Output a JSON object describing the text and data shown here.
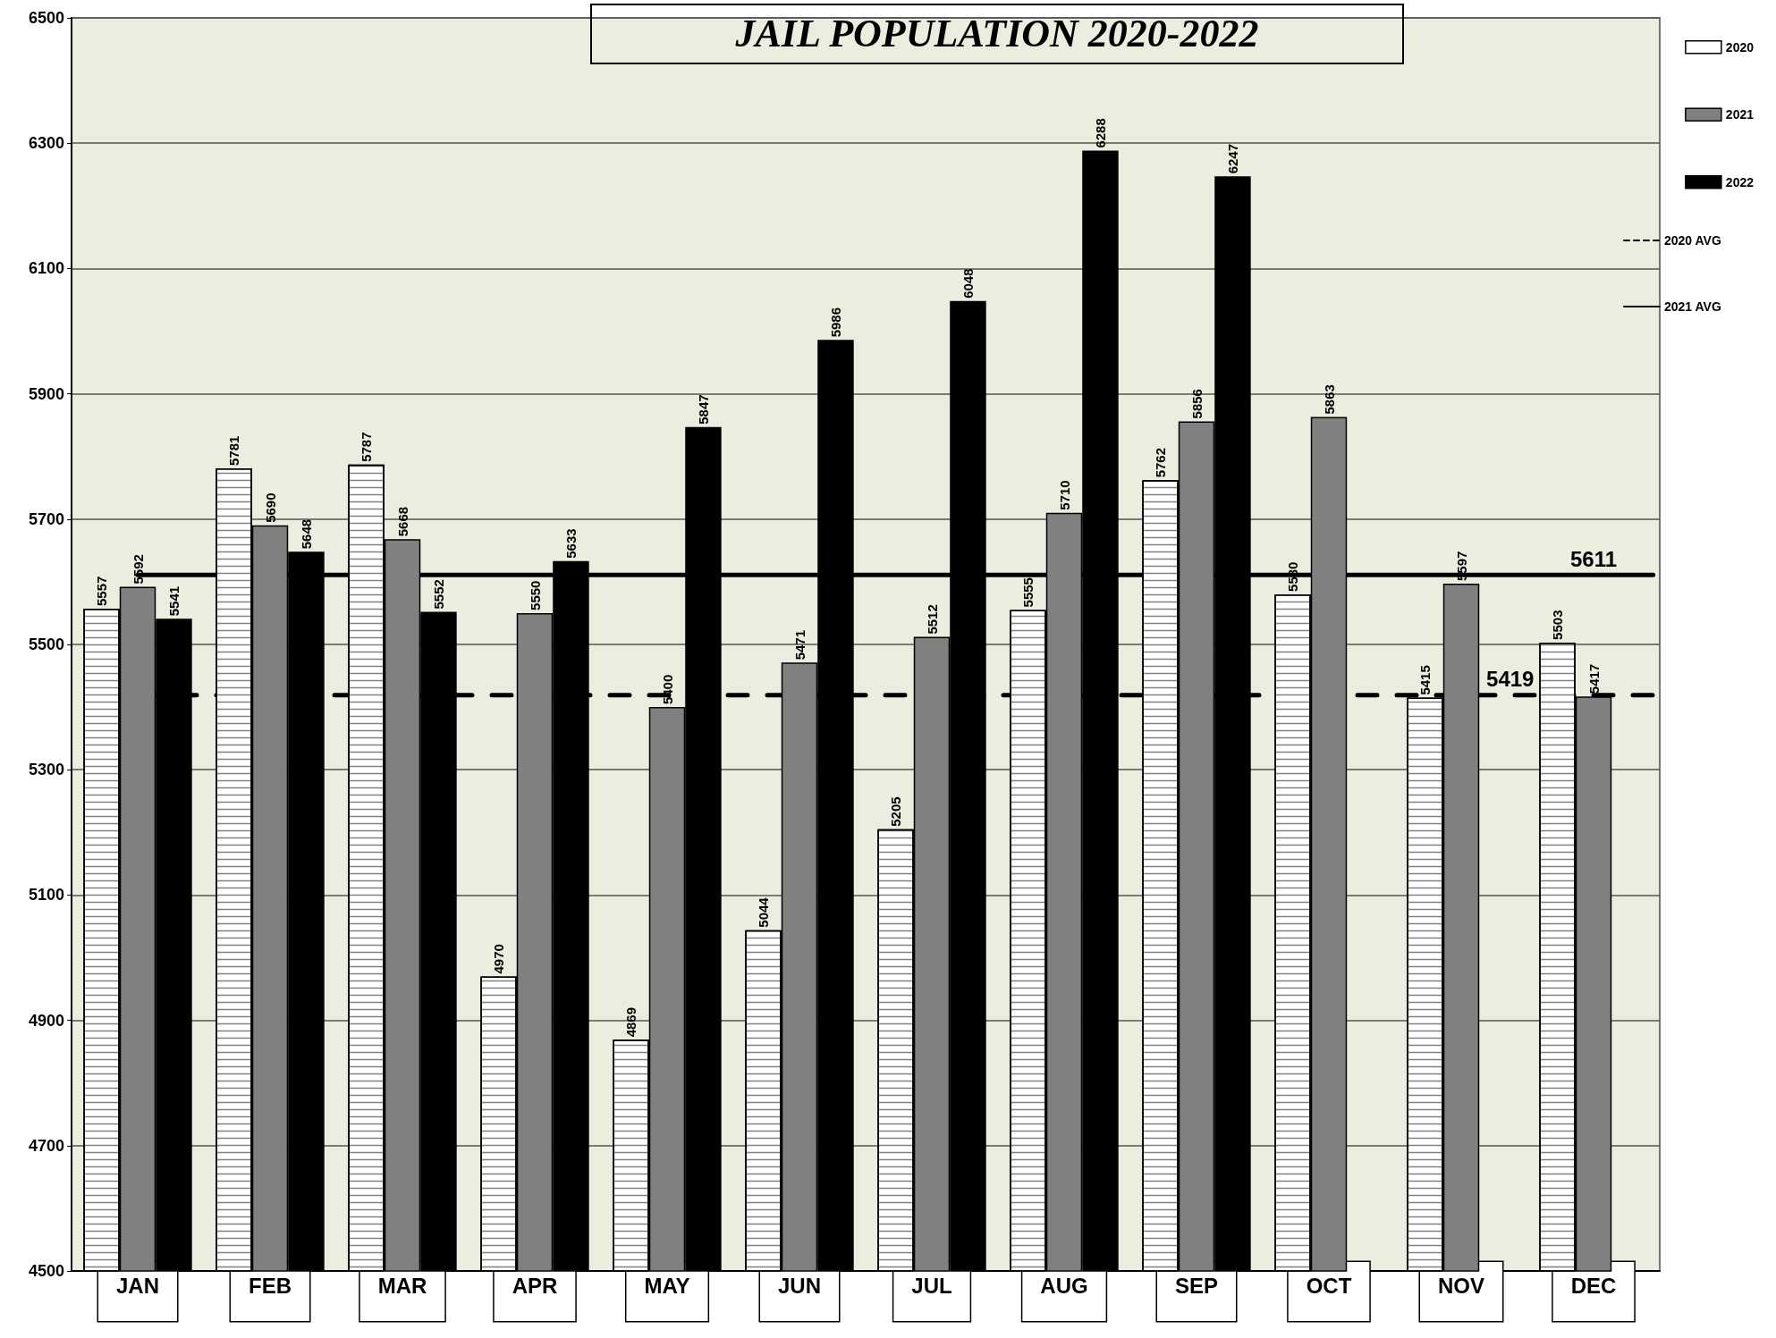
{
  "chart_data": {
    "type": "bar",
    "title": "JAIL POPULATION 2020-2022",
    "categories": [
      "JAN",
      "FEB",
      "MAR",
      "APR",
      "MAY",
      "JUN",
      "JUL",
      "AUG",
      "SEP",
      "OCT",
      "NOV",
      "DEC"
    ],
    "series": [
      {
        "name": "2020",
        "color": "#ffffff",
        "values": [
          5557,
          5781,
          5787,
          4970,
          4869,
          5044,
          5205,
          5555,
          5762,
          5580,
          5415,
          5503
        ]
      },
      {
        "name": "2021",
        "color": "#808080",
        "values": [
          5592,
          5690,
          5668,
          5550,
          5400,
          5471,
          5512,
          5710,
          5856,
          5863,
          5597,
          5417
        ]
      },
      {
        "name": "2022",
        "color": "#000000",
        "values": [
          5541,
          5648,
          5552,
          5633,
          5847,
          5986,
          6048,
          6288,
          6247,
          null,
          null,
          null
        ]
      }
    ],
    "ref_lines": [
      {
        "axis": "y",
        "value": 5419,
        "label": "2020 AVG",
        "color": "#000000",
        "line_style": "dashed"
      },
      {
        "axis": "y",
        "value": 5611,
        "label": "2021 AVG",
        "color": "#000000",
        "line_style": "solid"
      }
    ],
    "annotations": [
      {
        "text": "5419",
        "x": "DEC",
        "y": 5419
      },
      {
        "text": "5611",
        "x": "DEC",
        "y": 5611
      }
    ],
    "ylim": [
      4500,
      6500
    ],
    "yticks": [
      4500,
      4700,
      4900,
      5100,
      5300,
      5500,
      5700,
      5900,
      6100,
      6300,
      6500
    ],
    "grid": "y",
    "legend": "right",
    "data_labels": true
  }
}
